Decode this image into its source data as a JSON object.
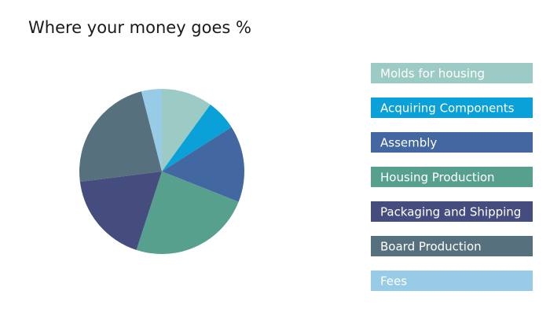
{
  "chart_data": {
    "type": "pie",
    "title": "Where your money goes %",
    "categories": [
      "Molds for housing",
      "Acquiring Components",
      "Assembly",
      "Housing Production",
      "Packaging and Shipping",
      "Board Production",
      "Fees"
    ],
    "values": [
      10,
      6,
      15,
      24,
      18,
      23,
      4
    ],
    "colors": [
      "#9ccbc6",
      "#0aa0d8",
      "#4367a0",
      "#57a08e",
      "#454c7e",
      "#56707e",
      "#98cbe6"
    ],
    "legend": "right"
  }
}
